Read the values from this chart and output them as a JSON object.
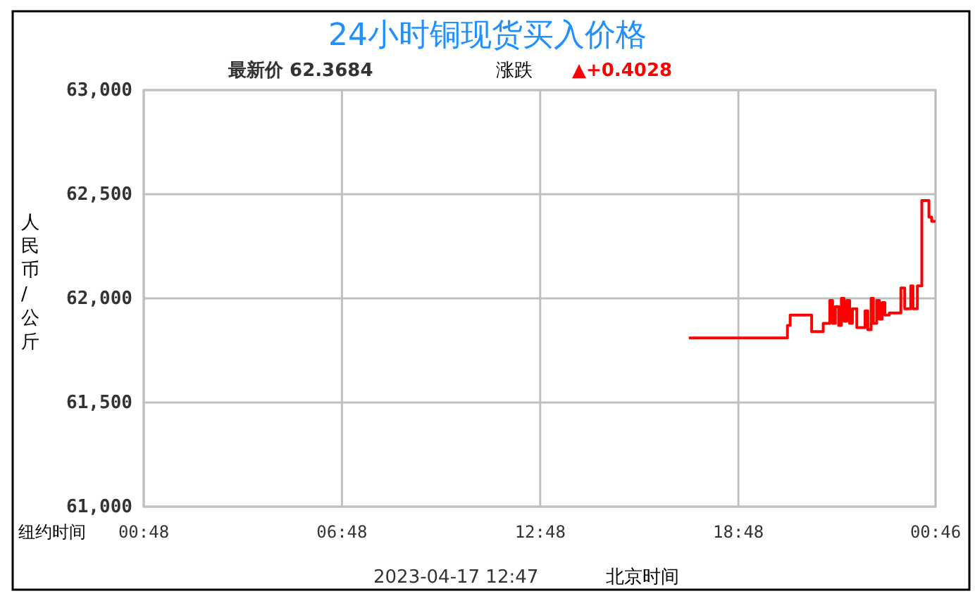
{
  "chart_data": {
    "type": "step",
    "title": "24小时铜现货买入价格",
    "subtitle": "最新价  62.3684",
    "ylabel": "人民币/公斤",
    "annotations": [
      "涨跌",
      "▲+0.4028",
      "纽约时间",
      "2023-04-17 12:47",
      "北京时间"
    ],
    "x": [
      "2023-04-16T17:18",
      "2023-04-16T20:17",
      "2023-04-16T20:22",
      "2023-04-16T21:01",
      "2023-04-16T21:22",
      "2023-04-16T21:34",
      "2023-04-16T21:39",
      "2023-04-16T21:44",
      "2023-04-16T21:50",
      "2023-04-16T21:55",
      "2023-04-16T22:00",
      "2023-04-16T22:05",
      "2023-04-16T22:10",
      "2023-04-16T22:15",
      "2023-04-16T22:23",
      "2023-04-16T22:38",
      "2023-04-16T22:43",
      "2023-04-16T22:49",
      "2023-04-16T22:53",
      "2023-04-16T22:59",
      "2023-04-16T23:04",
      "2023-04-16T23:09",
      "2023-04-16T23:14",
      "2023-04-16T23:22",
      "2023-04-16T23:43",
      "2023-04-16T23:50",
      "2023-04-17T00:01",
      "2023-04-17T00:05",
      "2023-04-17T00:13",
      "2023-04-17T00:21",
      "2023-04-17T00:34",
      "2023-04-17T00:39",
      "2023-04-17T00:45"
    ],
    "values": [
      61810,
      61870,
      61920,
      61840,
      61880,
      61990,
      61880,
      61960,
      61870,
      62000,
      61890,
      61990,
      61880,
      61950,
      61860,
      61940,
      61850,
      62000,
      61880,
      61990,
      61900,
      61980,
      61920,
      61930,
      62050,
      61950,
      62060,
      61950,
      62060,
      62470,
      62390,
      62370,
      62370
    ],
    "color": "#ff0000",
    "xlim": [
      "2023-04-16T00:48",
      "2023-04-17T00:46"
    ],
    "xticks": [
      {
        "value": "2023-04-16T00:48",
        "label": "00:48"
      },
      {
        "value": "2023-04-16T06:48",
        "label": "06:48"
      },
      {
        "value": "2023-04-16T12:48",
        "label": "12:48"
      },
      {
        "value": "2023-04-16T18:48",
        "label": "18:48"
      },
      {
        "value": "2023-04-17T00:46",
        "label": "00:46"
      }
    ],
    "ylim": [
      61000,
      63000
    ],
    "yticks": [
      {
        "value": 61000,
        "label": "61,000"
      },
      {
        "value": 61500,
        "label": "61,500"
      },
      {
        "value": 62000,
        "label": "62,000"
      },
      {
        "value": 62500,
        "label": "62,500"
      },
      {
        "value": 63000,
        "label": "63,000"
      }
    ],
    "grid": true
  }
}
